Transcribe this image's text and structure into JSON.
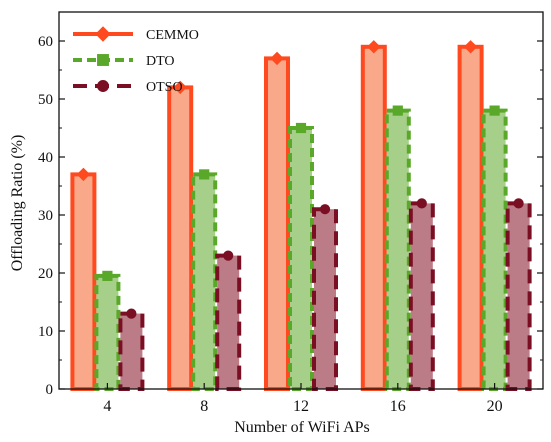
{
  "chart_data": {
    "type": "bar",
    "xlabel": "Number of WiFi APs",
    "ylabel": "Offloading Ratio (%)",
    "categories": [
      "4",
      "8",
      "12",
      "16",
      "20"
    ],
    "ylim": [
      0,
      65
    ],
    "yticks": [
      0,
      10,
      20,
      30,
      40,
      50,
      60
    ],
    "legend_position": "top-left",
    "grid": false,
    "series": [
      {
        "name": "CEMMO",
        "values": [
          37,
          52,
          57,
          59,
          59
        ],
        "stroke": "#ff4a1f",
        "fill": "#f9a98a",
        "dash": "solid",
        "marker": "diamond"
      },
      {
        "name": "DTO",
        "values": [
          19.5,
          37,
          45,
          48,
          48
        ],
        "stroke": "#5aa82a",
        "fill": "#a6d08a",
        "dash": "dashed",
        "marker": "square"
      },
      {
        "name": "OTSO",
        "values": [
          13,
          23,
          31,
          32,
          32
        ],
        "stroke": "#7a0f24",
        "fill": "#bb7b87",
        "dash": "longdash",
        "marker": "circle"
      }
    ]
  }
}
